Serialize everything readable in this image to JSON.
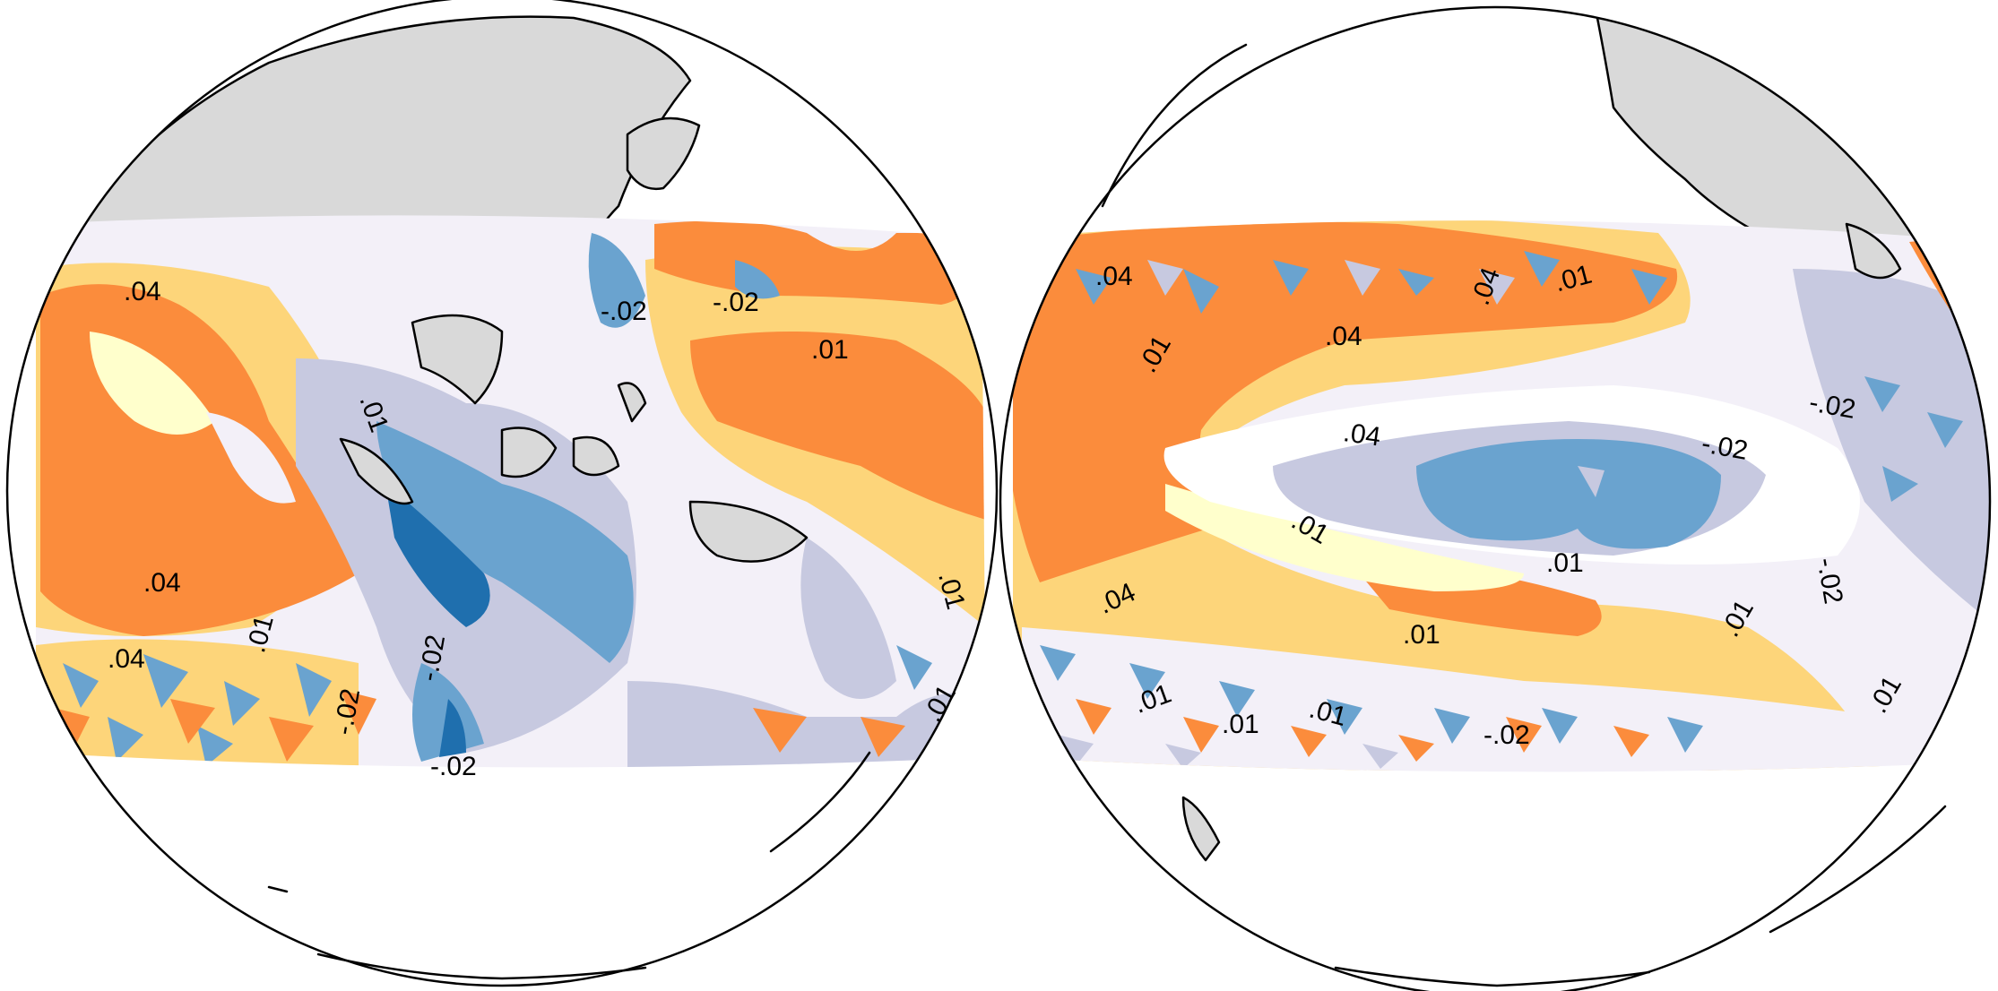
{
  "colors": {
    "land": "#d9d9d9",
    "coastline": "#000000",
    "ocean_blank": "#ffffff",
    "level_positive_high": "#fb8c3c",
    "level_positive_mid": "#fdd57a",
    "level_positive_low": "#ffffcc",
    "level_near_zero": "#f3f0f8",
    "level_negative_low": "#c7c9e0",
    "level_negative_mid": "#6aa3cf",
    "level_negative_high": "#1f6fae"
  },
  "contour_labels": {
    "left": [
      ".04",
      ".01",
      ".04",
      ".04",
      ".01",
      "-.02",
      "-.02",
      "-.02",
      ".01",
      "-.02",
      "-.02",
      ".01",
      ".01"
    ],
    "right": [
      ".04",
      ".01",
      ".04",
      ".04",
      ".01",
      ".04",
      "-.02",
      "-.02",
      ".01",
      ".01",
      ".04",
      ".01",
      "-.02",
      ".01",
      ".01",
      ".01",
      ".01",
      "-.02",
      ".01"
    ]
  }
}
